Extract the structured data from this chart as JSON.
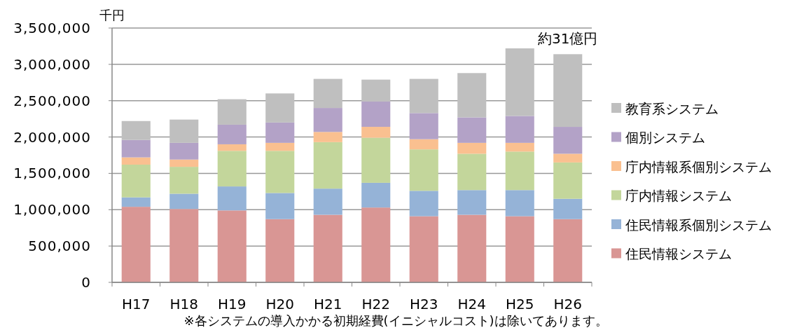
{
  "chart_data": {
    "type": "bar",
    "stacked": true,
    "ylabel": "千円",
    "categories": [
      "H17",
      "H18",
      "H19",
      "H20",
      "H21",
      "H22",
      "H23",
      "H24",
      "H25",
      "H26"
    ],
    "series": [
      {
        "name": "住民情報システム",
        "color": "#d99694",
        "values": [
          1040000,
          1010000,
          990000,
          870000,
          930000,
          1030000,
          910000,
          930000,
          910000,
          870000
        ]
      },
      {
        "name": "住民情報系個別システム",
        "color": "#95b3d7",
        "values": [
          130000,
          210000,
          330000,
          360000,
          360000,
          340000,
          350000,
          340000,
          360000,
          280000
        ]
      },
      {
        "name": "庁内情報システム",
        "color": "#c3d69b",
        "values": [
          450000,
          370000,
          490000,
          580000,
          640000,
          620000,
          570000,
          500000,
          530000,
          500000
        ]
      },
      {
        "name": "庁内情報系個別システム",
        "color": "#fac090",
        "values": [
          100000,
          100000,
          90000,
          110000,
          140000,
          150000,
          140000,
          150000,
          120000,
          120000
        ]
      },
      {
        "name": "個別システム",
        "color": "#b3a2c7",
        "values": [
          240000,
          230000,
          270000,
          280000,
          330000,
          350000,
          360000,
          350000,
          370000,
          370000
        ]
      },
      {
        "name": "教育系システム",
        "color": "#bfbfbf",
        "values": [
          260000,
          320000,
          350000,
          400000,
          400000,
          300000,
          470000,
          610000,
          930000,
          1000000
        ]
      }
    ],
    "ylim": [
      0,
      3500000
    ],
    "yticks": [
      0,
      {
        "value": 500000,
        "label": "500,000"
      },
      {
        "value": 1000000,
        "label": "1,000,000"
      },
      {
        "value": 1500000,
        "label": "1,500,000"
      },
      {
        "value": 2000000,
        "label": "2,000,000"
      },
      {
        "value": 2500000,
        "label": "2,500,000"
      },
      {
        "value": 3000000,
        "label": "3,000,000"
      },
      {
        "value": 3500000,
        "label": "3,500,000"
      }
    ],
    "grid": "y",
    "legend": "right",
    "annotations": [
      {
        "text": "約31億円",
        "x": "H26",
        "y": 3130000
      },
      "※各システムの導入かかる初期経費(イニシャルコスト)は除いてあります。"
    ]
  }
}
